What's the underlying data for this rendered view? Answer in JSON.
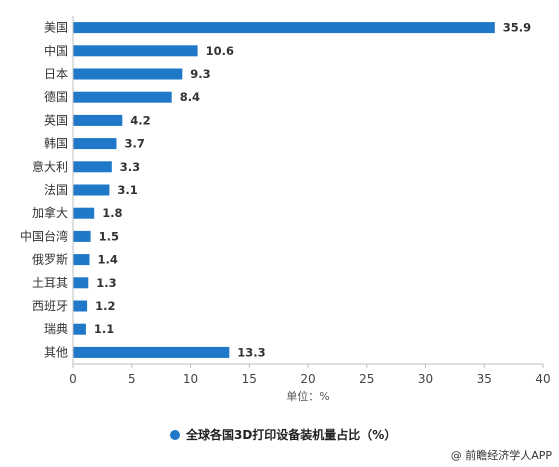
{
  "chart_data": {
    "type": "bar",
    "orientation": "horizontal",
    "categories": [
      "美国",
      "中国",
      "日本",
      "德国",
      "英国",
      "韩国",
      "意大利",
      "法国",
      "加拿大",
      "中国台湾",
      "俄罗斯",
      "土耳其",
      "西班牙",
      "瑞典",
      "其他"
    ],
    "values": [
      35.9,
      10.6,
      9.3,
      8.4,
      4.2,
      3.7,
      3.3,
      3.1,
      1.8,
      1.5,
      1.4,
      1.3,
      1.2,
      1.1,
      13.3
    ],
    "value_labels": [
      "35.9",
      "10.6",
      "9.3",
      "8.4",
      "4.2",
      "3.7",
      "3.3",
      "3.1",
      "1.8",
      "1.5",
      "1.4",
      "1.3",
      "1.2",
      "1.1",
      "13.3"
    ],
    "series": [
      {
        "name": "全球各国3D打印设备装机量占比（%）",
        "color": "#1f78c8"
      }
    ],
    "xlabel": "单位：%",
    "xlim": [
      0,
      40
    ],
    "xticks": [
      0,
      5,
      10,
      15,
      20,
      25,
      30,
      35,
      40
    ],
    "grid": false,
    "legend_position": "bottom-center"
  },
  "credit": "@ 前瞻经济学人APP"
}
